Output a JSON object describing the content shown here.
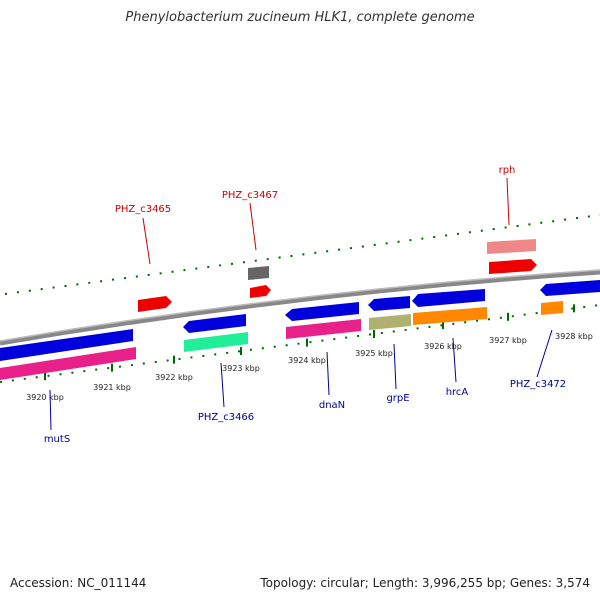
{
  "title": "Phenylobacterium zucineum HLK1, complete genome",
  "footer": {
    "accession": "Accession: NC_011144",
    "summary": "Topology: circular; Length: 3,996,255 bp; Genes: 3,574"
  },
  "axis": {
    "ticks": [
      "3920 kbp",
      "3921 kbp",
      "3922 kbp",
      "3923 kbp",
      "3924 kbp",
      "3925 kbp",
      "3926 kbp",
      "3927 kbp",
      "3928 kbp"
    ]
  },
  "colors": {
    "forward_label": "#cc0000",
    "reverse_label": "#000099",
    "backbone": "#888888",
    "tick": "#006600"
  },
  "genes": [
    {
      "label": "mutS",
      "strand": "reverse"
    },
    {
      "label": "PHZ_c3465",
      "strand": "forward"
    },
    {
      "label": "PHZ_c3466",
      "strand": "reverse"
    },
    {
      "label": "PHZ_c3467",
      "strand": "forward"
    },
    {
      "label": "dnaN",
      "strand": "reverse"
    },
    {
      "label": "grpE",
      "strand": "reverse"
    },
    {
      "label": "hrcA",
      "strand": "reverse"
    },
    {
      "label": "rph",
      "strand": "forward"
    },
    {
      "label": "PHZ_c3472",
      "strand": "reverse"
    }
  ]
}
